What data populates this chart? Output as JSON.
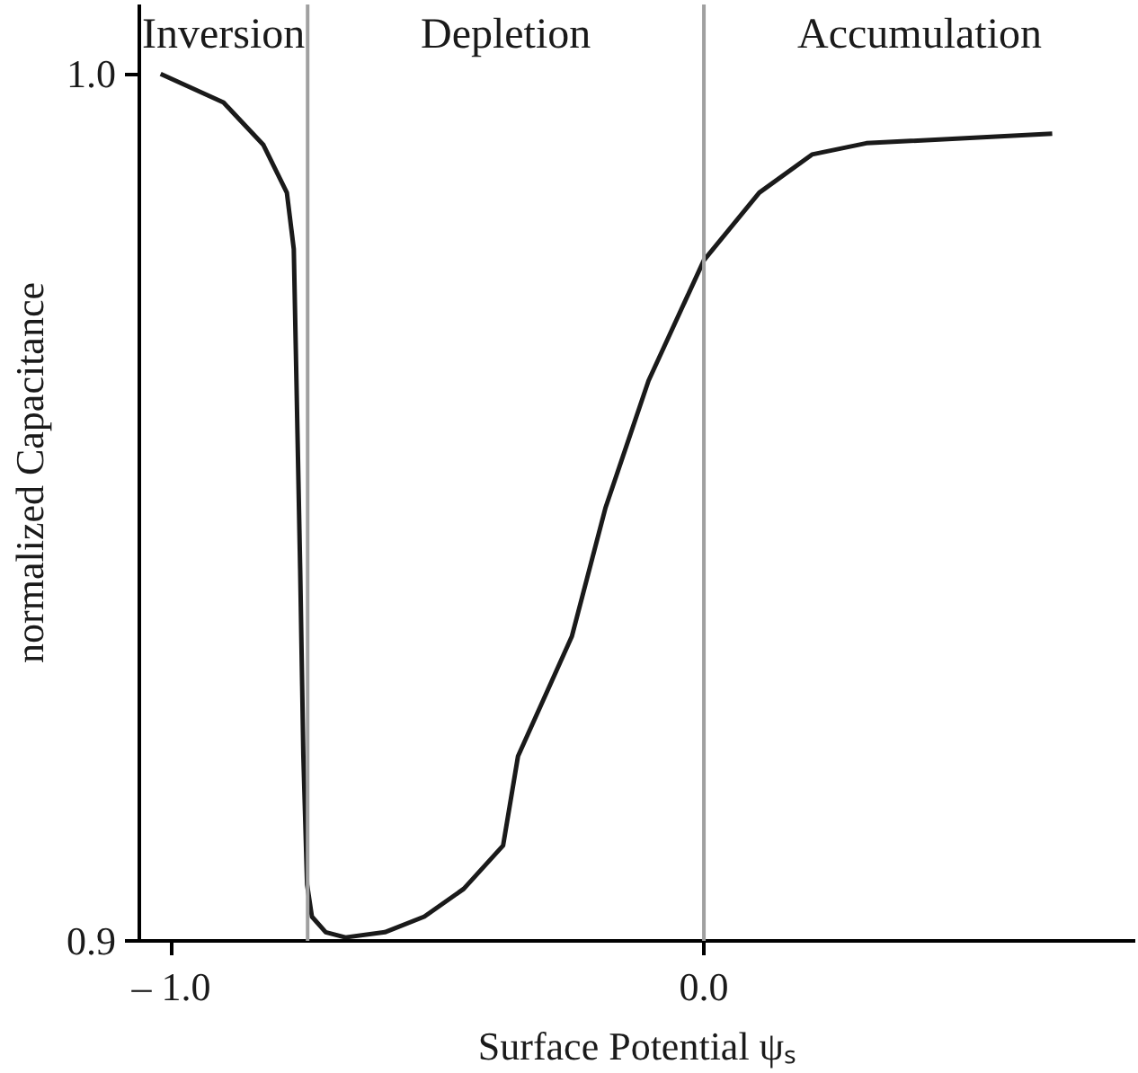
{
  "chart_data": {
    "type": "line",
    "xlabel": "Surface Potential ψₛ",
    "ylabel": "normalized Capacitance",
    "x": [
      -1.02,
      -0.902,
      -0.827,
      -0.783,
      -0.77,
      -0.765,
      -0.758,
      -0.752,
      -0.745,
      -0.736,
      -0.71,
      -0.673,
      -0.599,
      -0.525,
      -0.451,
      -0.377,
      -0.349,
      -0.248,
      -0.185,
      -0.104,
      0.0,
      0.104,
      0.203,
      0.305,
      0.654
    ],
    "series": [
      {
        "color": "#1a1a1a",
        "values": [
          1.0,
          0.9967,
          0.9918,
          0.9863,
          0.9798,
          0.9646,
          0.9429,
          0.9213,
          0.9065,
          0.9028,
          0.901,
          0.9004,
          0.901,
          0.9028,
          0.906,
          0.911,
          0.9213,
          0.9351,
          0.9499,
          0.9646,
          0.9785,
          0.9863,
          0.9907,
          0.992,
          0.9931
        ]
      }
    ],
    "xlim": [
      -1.06,
      0.81
    ],
    "ylim": [
      0.9,
      1.008
    ],
    "xticks": [
      {
        "value": -1.0,
        "label": "– 1.0"
      },
      {
        "value": 0.0,
        "label": "0.0"
      }
    ],
    "yticks": [
      {
        "value": 0.9,
        "label": "0.9"
      },
      {
        "value": 1.0,
        "label": "1.0"
      }
    ],
    "ref_lines": [
      {
        "axis": "x",
        "value": -0.744,
        "color": "#a0a0a0"
      },
      {
        "axis": "x",
        "value": 0.0,
        "color": "#a0a0a0"
      }
    ],
    "annotations": [
      "Inversion",
      "Depletion",
      "Accumulation"
    ],
    "marker": "none",
    "line_style": "solid"
  }
}
